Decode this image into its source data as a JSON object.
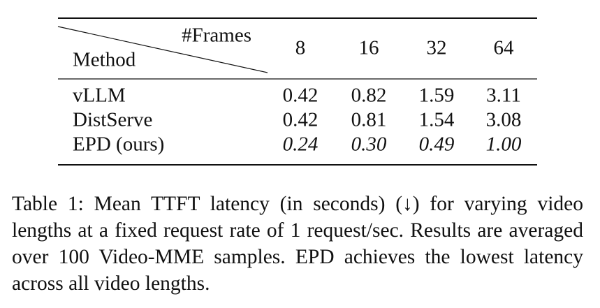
{
  "table": {
    "header": {
      "corner_top": "#Frames",
      "corner_bottom": "Method",
      "columns": [
        "8",
        "16",
        "32",
        "64"
      ]
    },
    "rows": [
      [
        "vLLM",
        "0.42",
        "0.82",
        "1.59",
        "3.11"
      ],
      [
        "DistServe",
        "0.42",
        "0.81",
        "1.54",
        "3.08"
      ],
      [
        "EPD (ours)",
        "0.24",
        "0.30",
        "0.49",
        "1.00"
      ]
    ]
  },
  "caption": "Table 1: Mean TTFT latency (in seconds) (↓) for varying video lengths at a fixed request rate of 1 request/sec. Results are averaged over 100 Video-MME samples. EPD achieves the lowest latency across all video lengths."
}
